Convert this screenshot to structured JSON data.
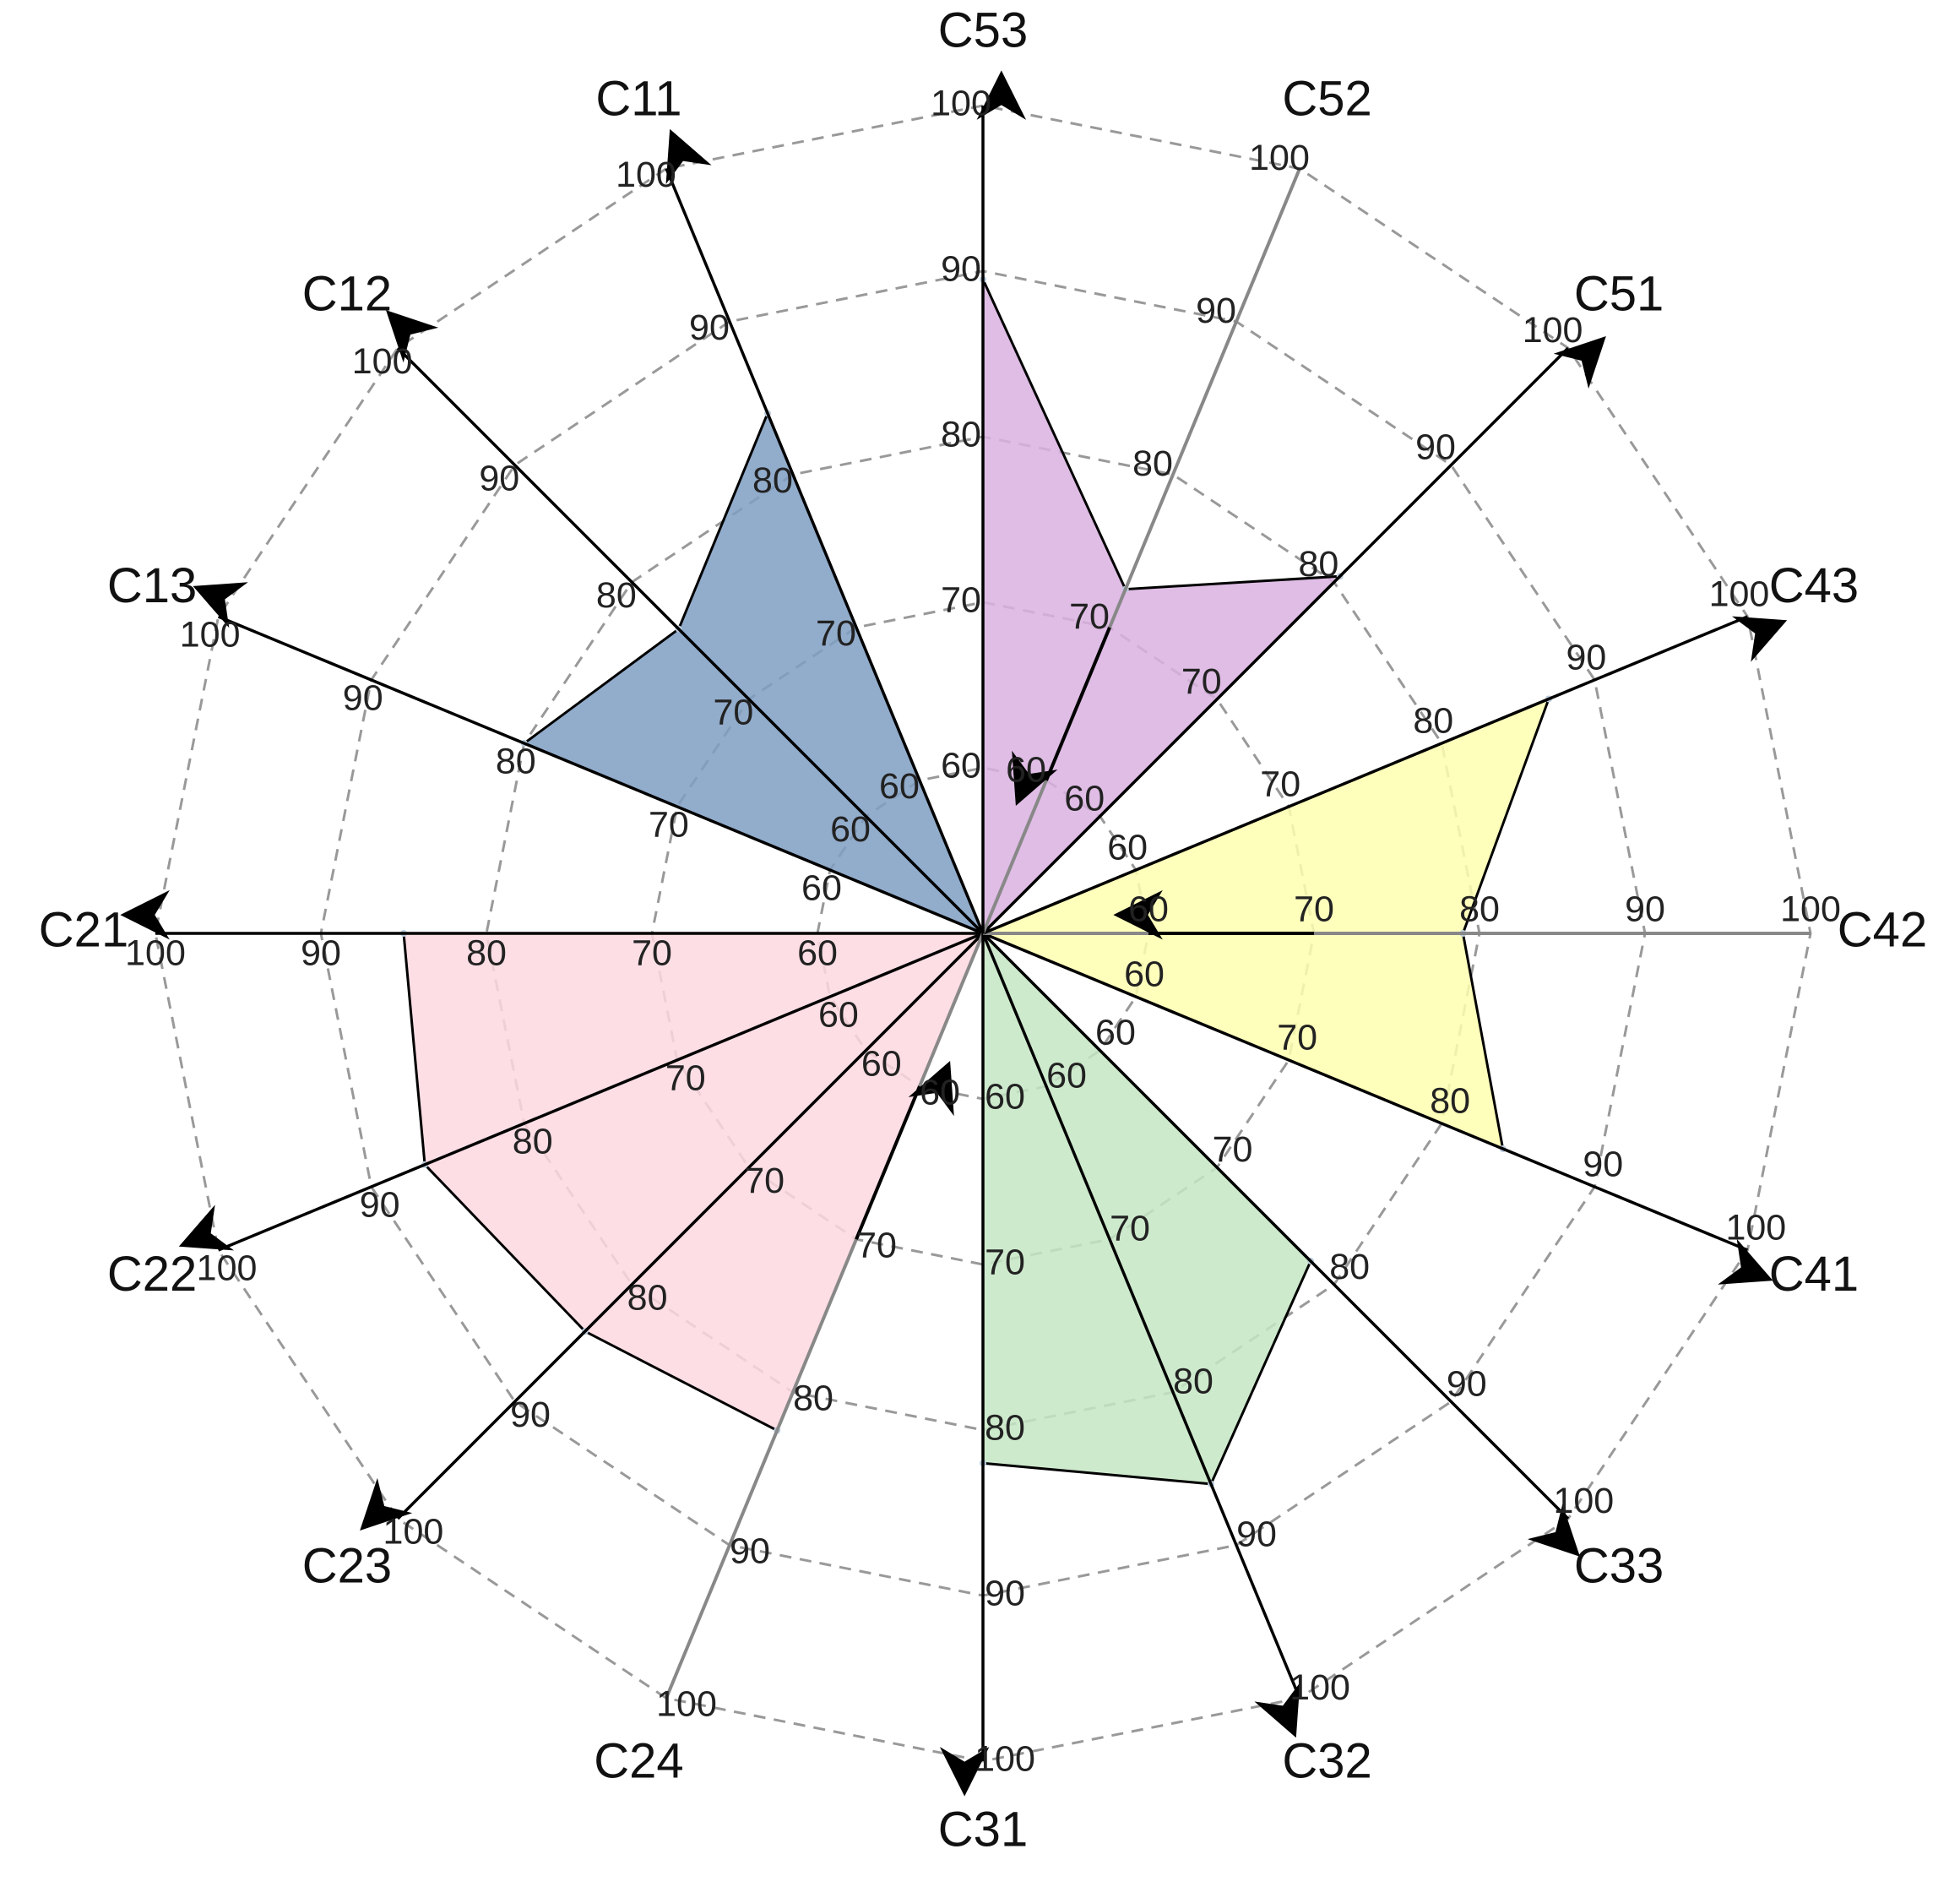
{
  "chart_data": {
    "type": "radar",
    "categories": [
      "C11",
      "C12",
      "C13",
      "C21",
      "C22",
      "C23",
      "C24",
      "C31",
      "C32",
      "C33",
      "C41",
      "C42",
      "C43",
      "C51",
      "C52",
      "C53"
    ],
    "arrows": [
      "out",
      "out",
      "out",
      "out",
      "out",
      "out",
      "in",
      "out",
      "out",
      "out",
      "out",
      "in",
      "out",
      "out",
      "in",
      "out"
    ],
    "rlim": [
      50,
      100
    ],
    "rticks": [
      60,
      70,
      80,
      90,
      100
    ],
    "grid": true,
    "series": [
      {
        "color": "#7f9ec2",
        "values": [
          84,
          76,
          80,
          null,
          null,
          null,
          null,
          null,
          null,
          null,
          null,
          null,
          null,
          null,
          null,
          null
        ]
      },
      {
        "color": "#fdd8e0",
        "values": [
          null,
          null,
          null,
          85,
          86.5,
          84,
          82.5,
          null,
          null,
          null,
          null,
          null,
          null,
          null,
          null,
          null
        ]
      },
      {
        "color": "#c6e6c4",
        "values": [
          null,
          null,
          null,
          null,
          null,
          null,
          null,
          82,
          86,
          78,
          null,
          null,
          null,
          null,
          null,
          null
        ]
      },
      {
        "color": "#ffffb0",
        "values": [
          null,
          null,
          null,
          null,
          null,
          null,
          null,
          null,
          null,
          null,
          84,
          79,
          87,
          null,
          null,
          null
        ]
      },
      {
        "color": "#d9b2e1",
        "values": [
          null,
          null,
          null,
          null,
          null,
          null,
          null,
          null,
          null,
          null,
          null,
          null,
          null,
          80.5,
          72.5,
          89.5
        ]
      }
    ]
  }
}
